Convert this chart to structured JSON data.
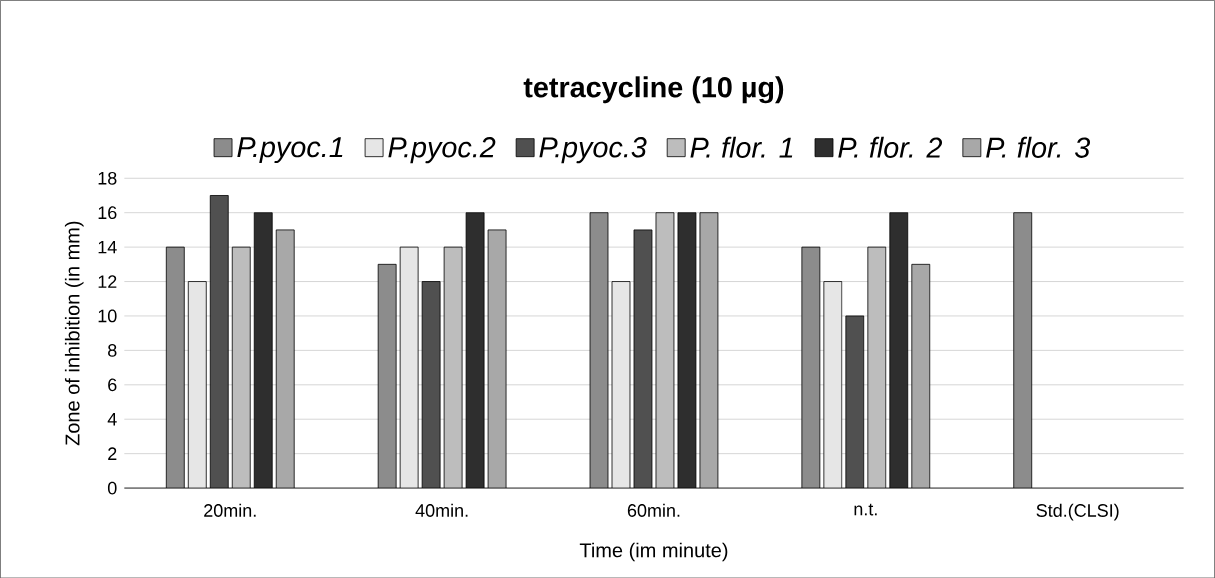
{
  "chart_data": {
    "type": "bar",
    "title": "tetracycline (10 µg)",
    "xlabel": "Time (im minute)",
    "ylabel": "Zone of inhibition (in mm)",
    "categories": [
      "20min.",
      "40min.",
      "60min.",
      "n.t.",
      "Std.(CLSI)"
    ],
    "series": [
      {
        "name": "P.pyoc.1",
        "color": "#8c8c8c",
        "values": [
          14,
          13,
          16,
          14,
          16
        ]
      },
      {
        "name": "P.pyoc.2",
        "color": "#e6e6e6",
        "values": [
          12,
          14,
          12,
          12,
          null
        ]
      },
      {
        "name": "P.pyoc.3",
        "color": "#505050",
        "values": [
          17,
          12,
          15,
          10,
          null
        ]
      },
      {
        "name": "P. flor. 1",
        "color": "#bdbdbd",
        "values": [
          14,
          14,
          16,
          14,
          null
        ]
      },
      {
        "name": "P. flor. 2",
        "color": "#2e2e2e",
        "values": [
          16,
          16,
          16,
          16,
          null
        ]
      },
      {
        "name": "P. flor. 3",
        "color": "#a8a8a8",
        "values": [
          15,
          15,
          16,
          13,
          null
        ]
      }
    ],
    "ylim": [
      0,
      18
    ],
    "yticks": [
      0,
      2,
      4,
      6,
      8,
      10,
      12,
      14,
      16,
      18
    ],
    "grid": true,
    "legend": "top"
  }
}
